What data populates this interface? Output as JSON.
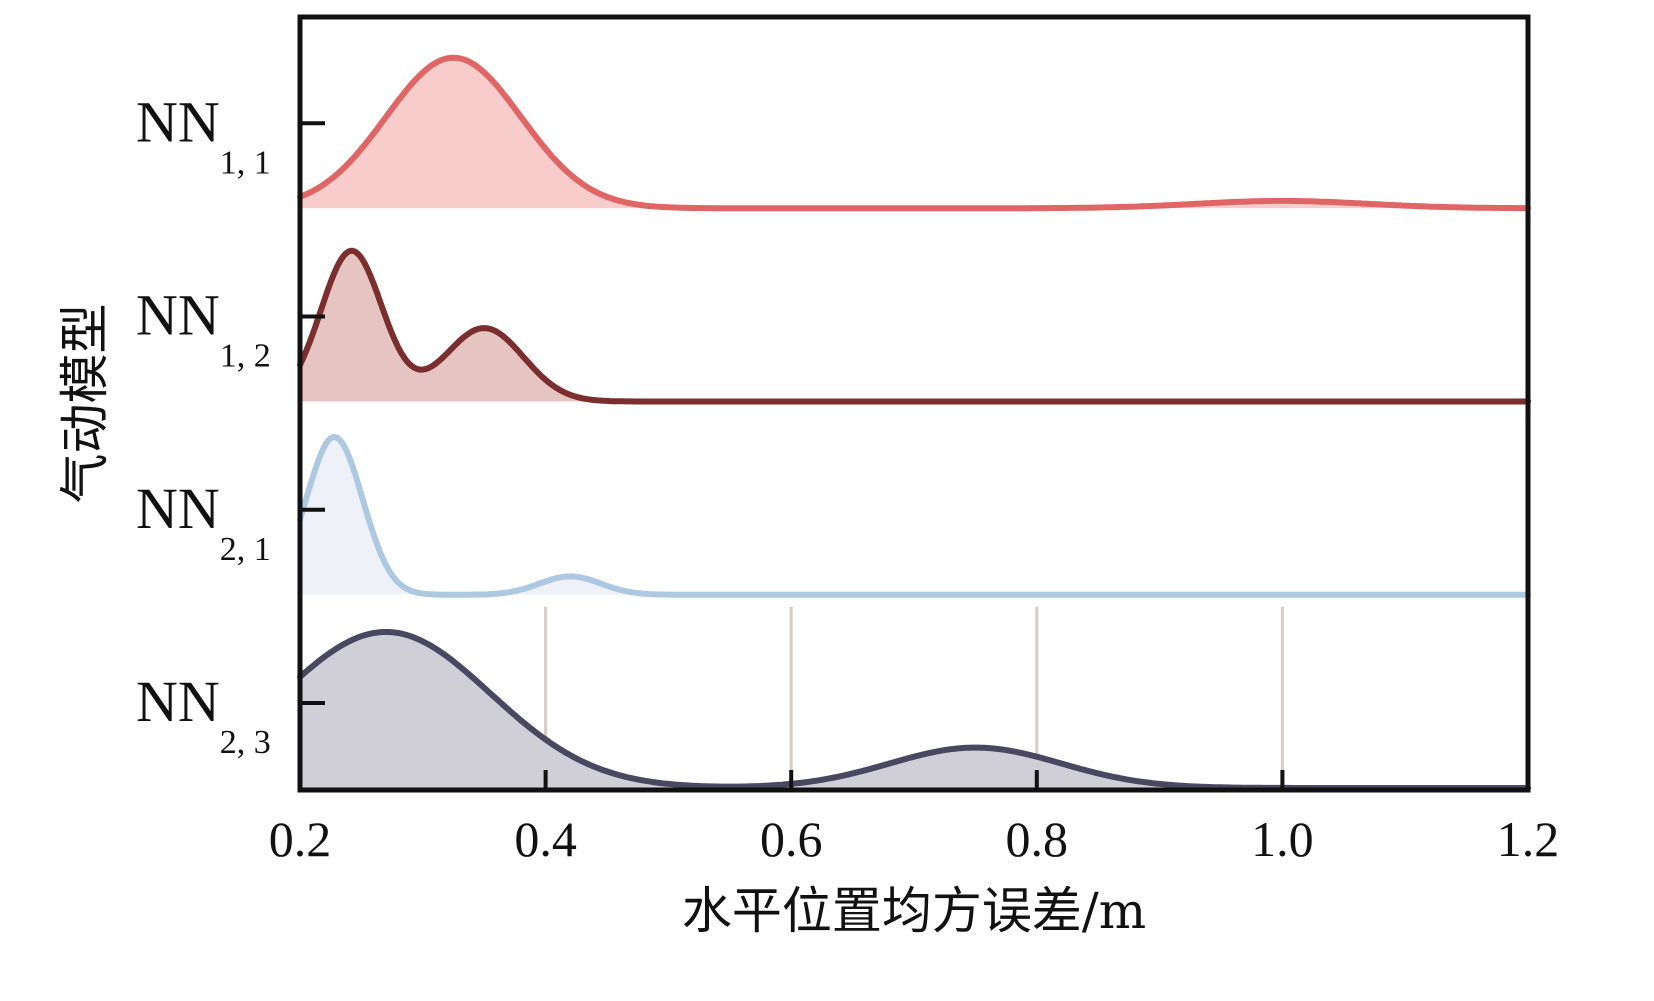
{
  "chart_data": {
    "type": "ridgeline density",
    "xlabel": "水平位置均方误差/m",
    "ylabel": "气动模型",
    "xlim": [
      0.2,
      1.2
    ],
    "x_ticks": [
      "0.2",
      "0.4",
      "0.6",
      "0.8",
      "1.0",
      "1.2"
    ],
    "vertical_reference_lines_at": [
      0.4,
      0.6,
      0.8,
      1.0
    ],
    "series": [
      {
        "name": "NN",
        "subscript": "1, 1",
        "color": "#e06666",
        "fill": "#f9cccc",
        "components": [
          {
            "mean": 0.325,
            "sd": 0.055,
            "height": 0.82
          },
          {
            "mean": 1.0,
            "sd": 0.07,
            "height": 0.04
          }
        ]
      },
      {
        "name": "NN",
        "subscript": "1, 2",
        "color": "#7a2e2e",
        "fill": "#e6c4c2",
        "components": [
          {
            "mean": 0.242,
            "sd": 0.025,
            "height": 0.82
          },
          {
            "mean": 0.35,
            "sd": 0.032,
            "height": 0.4
          }
        ]
      },
      {
        "name": "NN",
        "subscript": "2, 1",
        "color": "#adc9e2",
        "fill": "#eef2f8",
        "components": [
          {
            "mean": 0.228,
            "sd": 0.023,
            "height": 0.86
          },
          {
            "mean": 0.42,
            "sd": 0.025,
            "height": 0.1
          }
        ]
      },
      {
        "name": "NN",
        "subscript": "2, 3",
        "color": "#4a4760",
        "fill": "#d0ced6",
        "components": [
          {
            "mean": 0.27,
            "sd": 0.085,
            "height": 0.85
          },
          {
            "mean": 0.75,
            "sd": 0.07,
            "height": 0.22
          }
        ]
      }
    ]
  }
}
